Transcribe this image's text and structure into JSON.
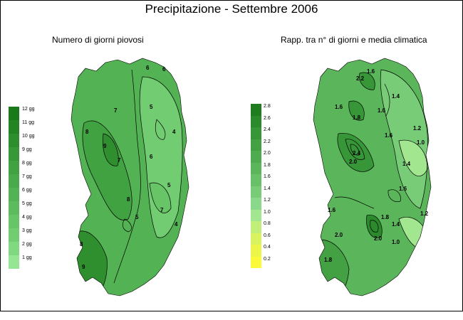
{
  "title": "Precipitazione - Settembre 2006",
  "left_map": {
    "subtitle": "Numero di giorni piovosi",
    "legend": [
      {
        "label": "12 gg",
        "color": "#1a7a1a"
      },
      {
        "label": "11 gg",
        "color": "#238423"
      },
      {
        "label": "10 gg",
        "color": "#2c8e2c"
      },
      {
        "label": "9 gg",
        "color": "#379837"
      },
      {
        "label": "8 gg",
        "color": "#41a241"
      },
      {
        "label": "7 gg",
        "color": "#4aa94a"
      },
      {
        "label": "6 gg",
        "color": "#53b253"
      },
      {
        "label": "5 gg",
        "color": "#5dbb5d"
      },
      {
        "label": "4 gg",
        "color": "#67c467"
      },
      {
        "label": "3 gg",
        "color": "#72cd72"
      },
      {
        "label": "2 gg",
        "color": "#80d880"
      },
      {
        "label": "1 gg",
        "color": "#94e694"
      }
    ],
    "contour_labels": [
      "9",
      "8",
      "7",
      "6",
      "6",
      "5",
      "4",
      "7",
      "8",
      "6",
      "5",
      "7",
      "5",
      "8",
      "4",
      "9"
    ]
  },
  "right_map": {
    "subtitle": "Rapp. tra n° di giorni e media climatica",
    "legend": [
      {
        "label": "2.8",
        "color": "#1f7d1f"
      },
      {
        "label": "2.6",
        "color": "#2b8a2b"
      },
      {
        "label": "2.4",
        "color": "#379637"
      },
      {
        "label": "2.2",
        "color": "#43a143"
      },
      {
        "label": "2.0",
        "color": "#4fab4f"
      },
      {
        "label": "1.8",
        "color": "#5bb55b"
      },
      {
        "label": "1.6",
        "color": "#68c068"
      },
      {
        "label": "1.4",
        "color": "#78cc78"
      },
      {
        "label": "1.2",
        "color": "#8ad88a"
      },
      {
        "label": "1.0",
        "color": "#a2e68f"
      },
      {
        "label": "0.8",
        "color": "#c2ee7a"
      },
      {
        "label": "0.6",
        "color": "#d8f260"
      },
      {
        "label": "0.4",
        "color": "#ecf54a"
      },
      {
        "label": "0.2",
        "color": "#fafa3a"
      }
    ],
    "contour_labels": [
      "1.6",
      "2.2",
      "1.8",
      "1.4",
      "1.6",
      "1.6",
      "1.2",
      "1.0",
      "2.4",
      "2.0",
      "1.6",
      "1.4",
      "1.8",
      "1.2",
      "1.6",
      "2.0",
      "1.4",
      "1.6",
      "1.0",
      "2.0",
      "1.8"
    ]
  },
  "colors": {
    "land_mid": "#53b253",
    "land_dark": "#2f8f2f",
    "land_light": "#7ccf7c",
    "contour": "#000000"
  }
}
